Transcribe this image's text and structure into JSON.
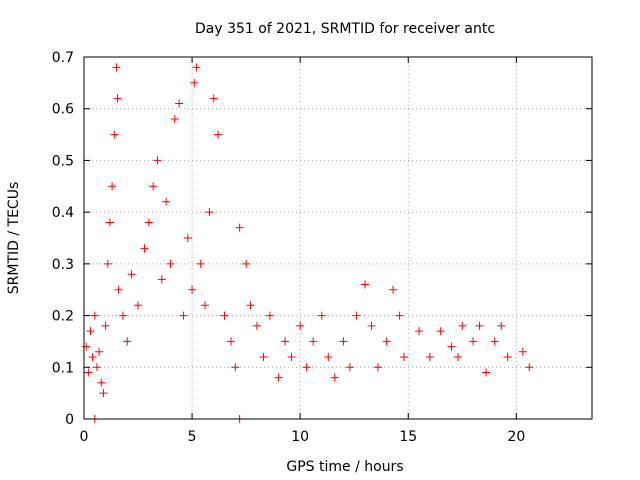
{
  "chart_data": {
    "type": "scatter",
    "title": "Day 351 of 2021, SRMTID for receiver antc",
    "xlabel": "GPS time / hours",
    "ylabel": "SRMTID / TECUs",
    "xlim": [
      0,
      23.5
    ],
    "ylim": [
      0,
      0.7
    ],
    "x_ticks": [
      0,
      5,
      10,
      15,
      20
    ],
    "y_ticks": [
      0,
      0.1,
      0.2,
      0.3,
      0.4,
      0.5,
      0.6,
      0.7
    ],
    "grid": true,
    "marker": "+",
    "color": "#ff0000",
    "series": [
      {
        "name": "SRMTID",
        "points": [
          [
            0.1,
            0.14
          ],
          [
            0.2,
            0.09
          ],
          [
            0.3,
            0.17
          ],
          [
            0.4,
            0.12
          ],
          [
            0.5,
            0.2
          ],
          [
            0.6,
            0.1
          ],
          [
            0.7,
            0.13
          ],
          [
            0.8,
            0.07
          ],
          [
            0.9,
            0.05
          ],
          [
            1.0,
            0.18
          ],
          [
            1.1,
            0.3
          ],
          [
            1.2,
            0.38
          ],
          [
            1.3,
            0.45
          ],
          [
            1.4,
            0.55
          ],
          [
            1.5,
            0.68
          ],
          [
            1.55,
            0.62
          ],
          [
            1.6,
            0.25
          ],
          [
            1.8,
            0.2
          ],
          [
            2.0,
            0.15
          ],
          [
            2.2,
            0.28
          ],
          [
            2.5,
            0.22
          ],
          [
            2.8,
            0.33
          ],
          [
            3.0,
            0.38
          ],
          [
            3.2,
            0.45
          ],
          [
            3.4,
            0.5
          ],
          [
            3.6,
            0.27
          ],
          [
            3.8,
            0.42
          ],
          [
            4.0,
            0.3
          ],
          [
            4.2,
            0.58
          ],
          [
            4.4,
            0.61
          ],
          [
            4.6,
            0.2
          ],
          [
            4.8,
            0.35
          ],
          [
            5.0,
            0.25
          ],
          [
            5.1,
            0.65
          ],
          [
            5.2,
            0.68
          ],
          [
            5.4,
            0.3
          ],
          [
            5.6,
            0.22
          ],
          [
            5.8,
            0.4
          ],
          [
            6.0,
            0.62
          ],
          [
            6.2,
            0.55
          ],
          [
            6.5,
            0.2
          ],
          [
            6.8,
            0.15
          ],
          [
            7.0,
            0.1
          ],
          [
            7.2,
            0.37
          ],
          [
            7.5,
            0.3
          ],
          [
            7.7,
            0.22
          ],
          [
            8.0,
            0.18
          ],
          [
            8.3,
            0.12
          ],
          [
            8.6,
            0.2
          ],
          [
            9.0,
            0.08
          ],
          [
            9.3,
            0.15
          ],
          [
            9.6,
            0.12
          ],
          [
            10.0,
            0.18
          ],
          [
            10.3,
            0.1
          ],
          [
            10.6,
            0.15
          ],
          [
            11.0,
            0.2
          ],
          [
            11.3,
            0.12
          ],
          [
            11.6,
            0.08
          ],
          [
            12.0,
            0.15
          ],
          [
            12.3,
            0.1
          ],
          [
            12.6,
            0.2
          ],
          [
            13.0,
            0.26
          ],
          [
            13.3,
            0.18
          ],
          [
            13.6,
            0.1
          ],
          [
            14.0,
            0.15
          ],
          [
            14.3,
            0.25
          ],
          [
            14.6,
            0.2
          ],
          [
            14.8,
            0.12
          ],
          [
            15.5,
            0.17
          ],
          [
            16.0,
            0.12
          ],
          [
            16.5,
            0.17
          ],
          [
            17.0,
            0.14
          ],
          [
            17.3,
            0.12
          ],
          [
            17.5,
            0.18
          ],
          [
            18.0,
            0.15
          ],
          [
            18.3,
            0.18
          ],
          [
            18.6,
            0.09
          ],
          [
            19.0,
            0.15
          ],
          [
            19.3,
            0.18
          ],
          [
            19.6,
            0.12
          ],
          [
            20.3,
            0.13
          ],
          [
            20.6,
            0.1
          ],
          [
            0.5,
            0
          ],
          [
            7.2,
            0
          ]
        ]
      }
    ]
  }
}
